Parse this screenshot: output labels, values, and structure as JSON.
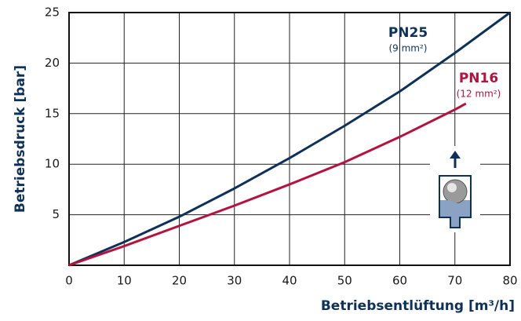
{
  "chart_data": {
    "type": "line",
    "xlabel": "Betriebsentlüftung [m³/h]",
    "ylabel": "Betriebsdruck [bar]",
    "xlim": [
      0,
      80
    ],
    "xticks": [
      0,
      10,
      20,
      30,
      40,
      50,
      60,
      70,
      80
    ],
    "ylim": [
      0,
      25
    ],
    "yticks": [
      5,
      10,
      15,
      20,
      25
    ],
    "grid": true,
    "series": [
      {
        "name": "PN25",
        "note": "(9 mm²)",
        "color": "#0d3159",
        "x": [
          0,
          10,
          20,
          30,
          40,
          50,
          60,
          70,
          80
        ],
        "values": [
          0,
          2.3,
          4.8,
          7.6,
          10.6,
          13.8,
          17.2,
          21.0,
          25.0
        ]
      },
      {
        "name": "PN16",
        "note": "(12 mm²)",
        "color": "#b5123e",
        "x": [
          0,
          10,
          20,
          30,
          40,
          50,
          60,
          70,
          72
        ],
        "values": [
          0,
          1.9,
          3.9,
          5.9,
          8.0,
          10.2,
          12.7,
          15.4,
          16.0
        ]
      }
    ]
  }
}
